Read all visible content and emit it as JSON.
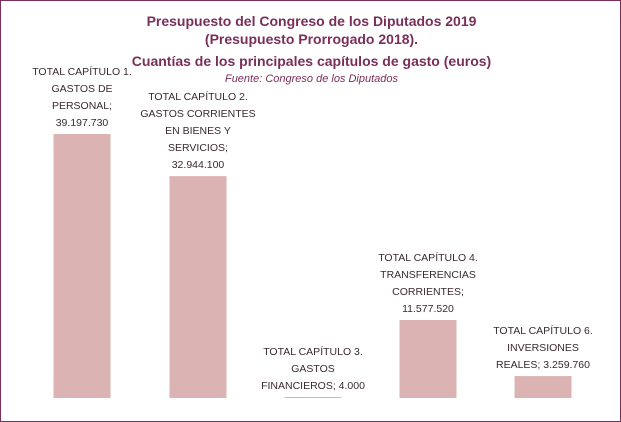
{
  "chart_data": {
    "type": "bar",
    "title_lines": [
      "Presupuesto del Congreso de los Diputados 2019",
      "(Presupuesto Prorrogado 2018).",
      "Cuantías de los principales capítulos de gasto (euros)"
    ],
    "subtitle": "Fuente: Congreso de los Diputados",
    "categories": [
      "TOTAL CAPÍTULO 1. GASTOS DE PERSONAL",
      "TOTAL CAPÍTULO 2. GASTOS CORRIENTES EN BIENES Y SERVICIOS",
      "TOTAL CAPÍTULO 3. GASTOS FINANCIEROS",
      "TOTAL CAPÍTULO 4. TRANSFERENCIAS CORRIENTES",
      "TOTAL CAPÍTULO 6. INVERSIONES REALES"
    ],
    "values": [
      39197730,
      32944100,
      4000,
      11577520,
      3259760
    ],
    "label_lines": [
      [
        "TOTAL CAPÍTULO 1.",
        "GASTOS DE",
        "PERSONAL;",
        "39.197.730"
      ],
      [
        "TOTAL CAPÍTULO 2.",
        "GASTOS CORRIENTES",
        "EN BIENES Y",
        "SERVICIOS;",
        "32.944.100"
      ],
      [
        "TOTAL CAPÍTULO 3.",
        "GASTOS",
        "FINANCIEROS; 4.000"
      ],
      [
        "TOTAL CAPÍTULO 4.",
        "TRANSFERENCIAS",
        "CORRIENTES;",
        "11.577.520"
      ],
      [
        "TOTAL CAPÍTULO 6.",
        "INVERSIONES",
        "REALES; 3.259.760"
      ]
    ],
    "bar_color": "#dcb3b3",
    "title_color": "#7a2e5a",
    "ylim": [
      0,
      45000000
    ],
    "grid": false,
    "legend": "none"
  }
}
